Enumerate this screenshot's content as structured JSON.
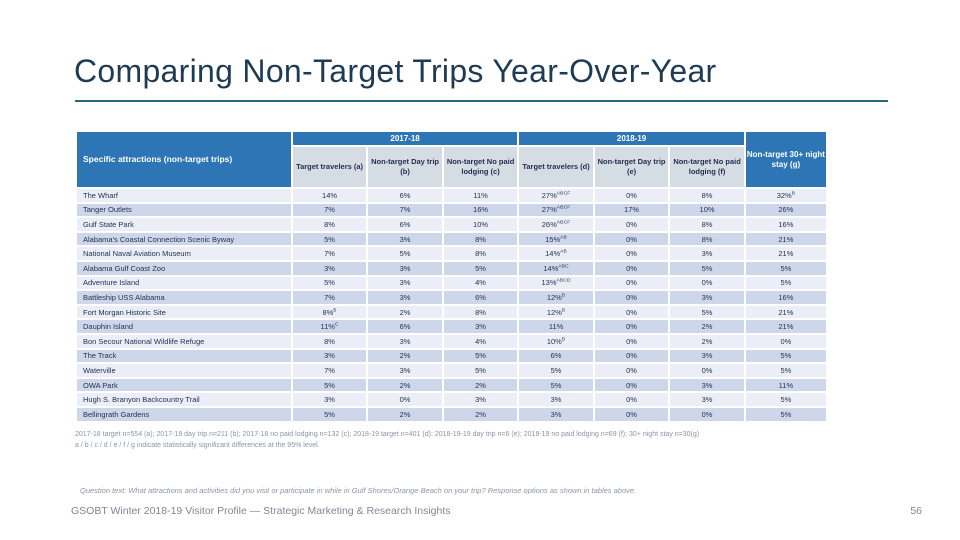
{
  "slide": {
    "title": "Comparing Non-Target Trips Year-Over-Year",
    "page_number": "56",
    "footer": "GSOBT Winter 2018-19 Visitor Profile — Strategic Marketing & Research Insights",
    "question_text": "Question text: What attractions and activities did you visit or participate in while in Gulf Shores/Orange Beach on your trip? Response options as shown in tables above.",
    "footnote_line1": "2017-18 target n=554 (a); 2017-18 day trip n=211 (b); 2017-18 no paid lodging n=132 (c); 2018-19 target n=401 (d); 2018-19-19 day trip n=6 (e); 2018-19 no paid lodging n=69 (f); 30+ night stay n=30(g)",
    "footnote_line2": "a / b / c / d / e / f / g  indicate statistically significant differences at the 95% level."
  },
  "colors": {
    "header_blue": "#2e75b6",
    "subheader_bg": "#d5dce4",
    "row_light": "#ebeef6",
    "row_dark": "#ced7e9",
    "title_text": "#1f3b54",
    "rule_teal": "#266a78",
    "cell_text": "#1f2f4e"
  },
  "table": {
    "row_header": "Specific attractions (non-target trips)",
    "year_groups": [
      "2017-18",
      "2018-19"
    ],
    "col_g_header": "Non-target 30+ night stay (g)",
    "sub_headers": [
      "Target travelers (a)",
      "Non-target Day trip (b)",
      "Non-target No paid lodging (c)",
      "Target travelers (d)",
      "Non-target Day trip (e)",
      "Non-target No paid lodging (f)"
    ],
    "rows": [
      {
        "name": "The Wharf",
        "values": [
          {
            "v": "14%",
            "s": ""
          },
          {
            "v": "6%",
            "s": ""
          },
          {
            "v": "11%",
            "s": ""
          },
          {
            "v": "27%",
            "s": "ABCF"
          },
          {
            "v": "0%",
            "s": ""
          },
          {
            "v": "8%",
            "s": ""
          },
          {
            "v": "32%",
            "s": "B"
          }
        ]
      },
      {
        "name": "Tanger Outlets",
        "values": [
          {
            "v": "7%",
            "s": ""
          },
          {
            "v": "7%",
            "s": ""
          },
          {
            "v": "16%",
            "s": ""
          },
          {
            "v": "27%",
            "s": "ABCF"
          },
          {
            "v": "17%",
            "s": ""
          },
          {
            "v": "10%",
            "s": ""
          },
          {
            "v": "26%",
            "s": ""
          }
        ]
      },
      {
        "name": "Gulf State Park",
        "values": [
          {
            "v": "8%",
            "s": ""
          },
          {
            "v": "6%",
            "s": ""
          },
          {
            "v": "10%",
            "s": ""
          },
          {
            "v": "26%",
            "s": "ABCF"
          },
          {
            "v": "0%",
            "s": ""
          },
          {
            "v": "8%",
            "s": ""
          },
          {
            "v": "16%",
            "s": ""
          }
        ]
      },
      {
        "name": "Alabama's Coastal Connection Scenic Byway",
        "values": [
          {
            "v": "5%",
            "s": ""
          },
          {
            "v": "3%",
            "s": ""
          },
          {
            "v": "8%",
            "s": ""
          },
          {
            "v": "15%",
            "s": "AB"
          },
          {
            "v": "0%",
            "s": ""
          },
          {
            "v": "8%",
            "s": ""
          },
          {
            "v": "21%",
            "s": ""
          }
        ]
      },
      {
        "name": "National Naval Aviation Museum",
        "values": [
          {
            "v": "7%",
            "s": ""
          },
          {
            "v": "5%",
            "s": ""
          },
          {
            "v": "8%",
            "s": ""
          },
          {
            "v": "14%",
            "s": "AB"
          },
          {
            "v": "0%",
            "s": ""
          },
          {
            "v": "3%",
            "s": ""
          },
          {
            "v": "21%",
            "s": ""
          }
        ]
      },
      {
        "name": "Alabama Gulf Coast Zoo",
        "values": [
          {
            "v": "3%",
            "s": ""
          },
          {
            "v": "3%",
            "s": ""
          },
          {
            "v": "5%",
            "s": ""
          },
          {
            "v": "14%",
            "s": "ABC"
          },
          {
            "v": "0%",
            "s": ""
          },
          {
            "v": "5%",
            "s": ""
          },
          {
            "v": "5%",
            "s": ""
          }
        ]
      },
      {
        "name": "Adventure Island",
        "values": [
          {
            "v": "5%",
            "s": ""
          },
          {
            "v": "3%",
            "s": ""
          },
          {
            "v": "4%",
            "s": ""
          },
          {
            "v": "13%",
            "s": "ABCD"
          },
          {
            "v": "0%",
            "s": ""
          },
          {
            "v": "0%",
            "s": ""
          },
          {
            "v": "5%",
            "s": ""
          }
        ]
      },
      {
        "name": "Battleship USS Alabama",
        "values": [
          {
            "v": "7%",
            "s": ""
          },
          {
            "v": "3%",
            "s": ""
          },
          {
            "v": "6%",
            "s": ""
          },
          {
            "v": "12%",
            "s": "B"
          },
          {
            "v": "0%",
            "s": ""
          },
          {
            "v": "3%",
            "s": ""
          },
          {
            "v": "16%",
            "s": ""
          }
        ]
      },
      {
        "name": "Fort Morgan Historic Site",
        "values": [
          {
            "v": "8%",
            "s": "B"
          },
          {
            "v": "2%",
            "s": ""
          },
          {
            "v": "8%",
            "s": ""
          },
          {
            "v": "12%",
            "s": "B"
          },
          {
            "v": "0%",
            "s": ""
          },
          {
            "v": "5%",
            "s": ""
          },
          {
            "v": "21%",
            "s": ""
          }
        ]
      },
      {
        "name": "Dauphin Island",
        "values": [
          {
            "v": "11%",
            "s": "C"
          },
          {
            "v": "6%",
            "s": ""
          },
          {
            "v": "3%",
            "s": ""
          },
          {
            "v": "11%",
            "s": ""
          },
          {
            "v": "0%",
            "s": ""
          },
          {
            "v": "2%",
            "s": ""
          },
          {
            "v": "21%",
            "s": ""
          }
        ]
      },
      {
        "name": "Bon Secour National Wildlife Refuge",
        "values": [
          {
            "v": "8%",
            "s": ""
          },
          {
            "v": "3%",
            "s": ""
          },
          {
            "v": "4%",
            "s": ""
          },
          {
            "v": "10%",
            "s": "B"
          },
          {
            "v": "0%",
            "s": ""
          },
          {
            "v": "2%",
            "s": ""
          },
          {
            "v": "0%",
            "s": ""
          }
        ]
      },
      {
        "name": "The Track",
        "values": [
          {
            "v": "3%",
            "s": ""
          },
          {
            "v": "2%",
            "s": ""
          },
          {
            "v": "5%",
            "s": ""
          },
          {
            "v": "6%",
            "s": ""
          },
          {
            "v": "0%",
            "s": ""
          },
          {
            "v": "3%",
            "s": ""
          },
          {
            "v": "5%",
            "s": ""
          }
        ]
      },
      {
        "name": "Waterville",
        "values": [
          {
            "v": "7%",
            "s": ""
          },
          {
            "v": "3%",
            "s": ""
          },
          {
            "v": "5%",
            "s": ""
          },
          {
            "v": "5%",
            "s": ""
          },
          {
            "v": "0%",
            "s": ""
          },
          {
            "v": "0%",
            "s": ""
          },
          {
            "v": "5%",
            "s": ""
          }
        ]
      },
      {
        "name": "OWA Park",
        "values": [
          {
            "v": "5%",
            "s": ""
          },
          {
            "v": "2%",
            "s": ""
          },
          {
            "v": "2%",
            "s": ""
          },
          {
            "v": "5%",
            "s": ""
          },
          {
            "v": "0%",
            "s": ""
          },
          {
            "v": "3%",
            "s": ""
          },
          {
            "v": "11%",
            "s": ""
          }
        ]
      },
      {
        "name": "Hugh S. Branyon Backcountry Trail",
        "values": [
          {
            "v": "3%",
            "s": ""
          },
          {
            "v": "0%",
            "s": ""
          },
          {
            "v": "3%",
            "s": ""
          },
          {
            "v": "3%",
            "s": ""
          },
          {
            "v": "0%",
            "s": ""
          },
          {
            "v": "3%",
            "s": ""
          },
          {
            "v": "5%",
            "s": ""
          }
        ]
      },
      {
        "name": "Bellingrath Gardens",
        "values": [
          {
            "v": "5%",
            "s": ""
          },
          {
            "v": "2%",
            "s": ""
          },
          {
            "v": "2%",
            "s": ""
          },
          {
            "v": "3%",
            "s": ""
          },
          {
            "v": "0%",
            "s": ""
          },
          {
            "v": "0%",
            "s": ""
          },
          {
            "v": "5%",
            "s": ""
          }
        ]
      }
    ]
  }
}
